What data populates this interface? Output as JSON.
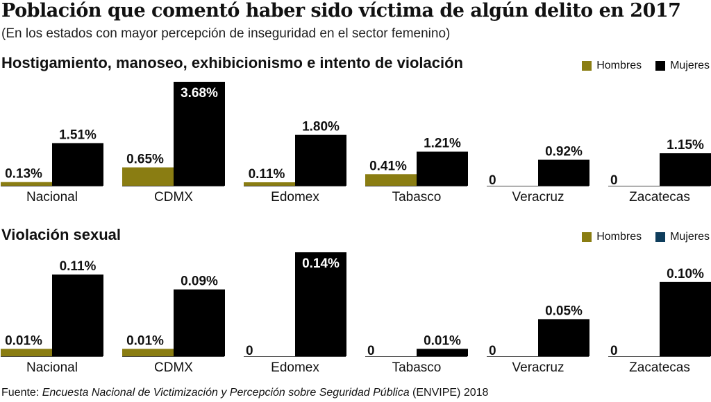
{
  "title": "Población que comentó haber sido víctima de algún delito en 2017",
  "subtitle": "(En los estados con mayor percepción de inseguridad en el sector femenino)",
  "colors": {
    "hombres": "#8a7d12",
    "mujeres": "#000000",
    "mujeres_legend_2": "#0e3d5c"
  },
  "footer": {
    "prefix": "Fuente: ",
    "source": "Encuesta Nacional de Victimización y Percepción sobre Seguridad Pública",
    "suffix": " (ENVIPE) 2018"
  },
  "chart_data": [
    {
      "type": "bar",
      "title": "Hostigamiento, manoseo, exhibicionismo e intento de violación",
      "categories": [
        "Nacional",
        "CDMX",
        "Edomex",
        "Tabasco",
        "Veracruz",
        "Zacatecas"
      ],
      "series": [
        {
          "name": "Hombres",
          "values": [
            0.13,
            0.65,
            0.11,
            0.41,
            0,
            0
          ],
          "labels": [
            "0.13%",
            "0.65%",
            "0.11%",
            "0.41%",
            "0",
            "0"
          ]
        },
        {
          "name": "Mujeres",
          "values": [
            1.51,
            3.68,
            1.8,
            1.21,
            0.92,
            1.15
          ],
          "labels": [
            "1.51%",
            "3.68%",
            "1.80%",
            "1.21%",
            "0.92%",
            "1.15%"
          ]
        }
      ],
      "legend_position": "top-right",
      "grid": false
    },
    {
      "type": "bar",
      "title": "Violación sexual",
      "categories": [
        "Nacional",
        "CDMX",
        "Edomex",
        "Tabasco",
        "Veracruz",
        "Zacatecas"
      ],
      "series": [
        {
          "name": "Hombres",
          "values": [
            0.01,
            0.01,
            0,
            0,
            0,
            0
          ],
          "labels": [
            "0.01%",
            "0.01%",
            "0",
            "0",
            "0",
            "0"
          ]
        },
        {
          "name": "Mujeres",
          "values": [
            0.11,
            0.09,
            0.14,
            0.01,
            0.05,
            0.1
          ],
          "labels": [
            "0.11%",
            "0.09%",
            "0.14%",
            "0.01%",
            "0.05%",
            "0.10%"
          ]
        }
      ],
      "legend_position": "top-right",
      "grid": false
    }
  ]
}
